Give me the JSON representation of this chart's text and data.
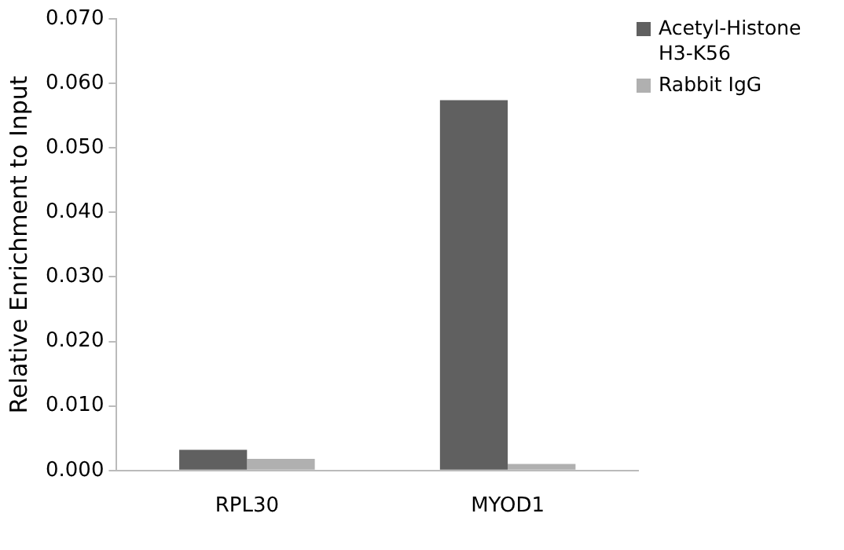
{
  "chart_data": {
    "type": "bar",
    "ylabel": "Relative Enrichment to Input",
    "categories": [
      "RPL30",
      "MYOD1"
    ],
    "series": [
      {
        "name": "Acetyl-Histone H3-K56",
        "color": "#606060",
        "values": [
          0.0032,
          0.0574
        ]
      },
      {
        "name": "Rabbit IgG",
        "color": "#b0b0b0",
        "values": [
          0.0018,
          0.001
        ]
      }
    ],
    "ylim": [
      0,
      0.07
    ],
    "yticks": [
      {
        "value": 0,
        "label": "0.000"
      },
      {
        "value": 0.01,
        "label": "0.010"
      },
      {
        "value": 0.02,
        "label": "0.020"
      },
      {
        "value": 0.03,
        "label": "0.030"
      },
      {
        "value": 0.04,
        "label": "0.040"
      },
      {
        "value": 0.05,
        "label": "0.050"
      },
      {
        "value": 0.06,
        "label": "0.060"
      },
      {
        "value": 0.07,
        "label": "0.070"
      }
    ],
    "grid": false,
    "legend": "top right"
  }
}
